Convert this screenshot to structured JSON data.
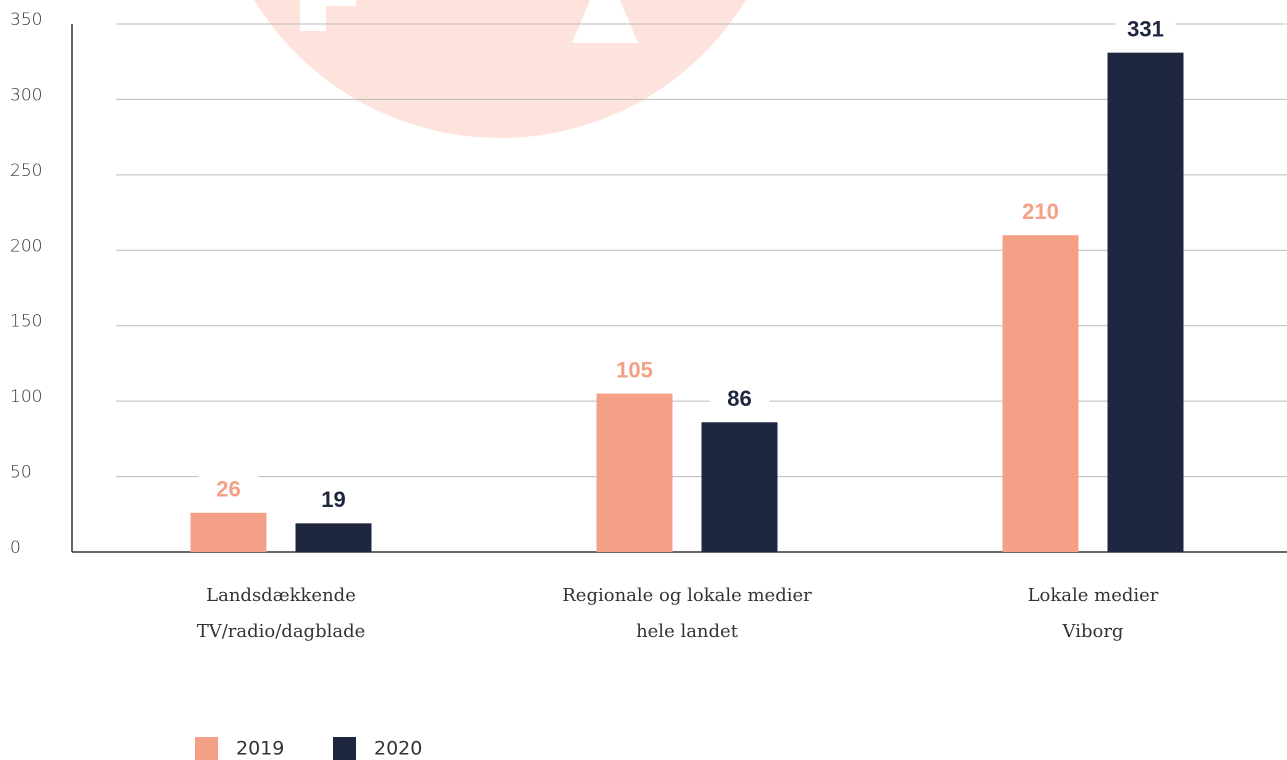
{
  "chart_data": {
    "type": "bar",
    "categories": [
      [
        "Landsdækkende",
        "TV/radio/dagblade"
      ],
      [
        "Regionale og lokale medier",
        "hele landet"
      ],
      [
        "Lokale medier",
        "Viborg"
      ]
    ],
    "series": [
      {
        "name": "2019",
        "color": "#f4a086",
        "values": [
          26,
          105,
          210
        ]
      },
      {
        "name": "2020",
        "color": "#1f2640",
        "values": [
          19,
          86,
          331
        ]
      }
    ],
    "ylim": [
      0,
      350
    ],
    "yticks": [
      0,
      50,
      100,
      150,
      200,
      250,
      300,
      350
    ],
    "grid": true
  }
}
